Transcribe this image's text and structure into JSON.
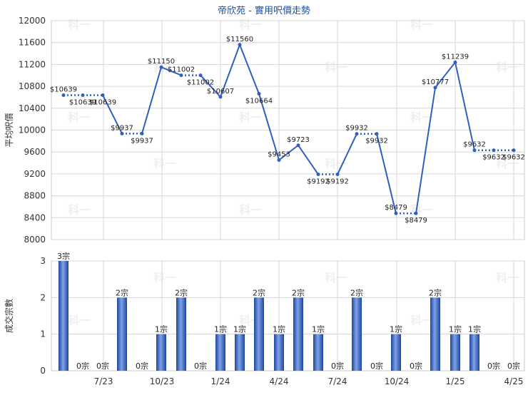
{
  "chart_data": [
    {
      "type": "line",
      "title": "帝欣苑 - 實用呎價走勢",
      "xlabel": "",
      "ylabel": "平均呎價",
      "ylim": [
        8000,
        12000
      ],
      "yticks": [
        8000,
        8400,
        8800,
        9200,
        9600,
        10000,
        10400,
        10800,
        11200,
        11600,
        12000
      ],
      "grid": true,
      "data_label_prefix": "$",
      "series_color": "#2f5fbf",
      "values": [
        10639,
        10639,
        10639,
        null,
        9937,
        9937,
        null,
        11150,
        11002,
        11002,
        10607,
        11560,
        10664,
        9453,
        9723,
        9192,
        9192,
        9932,
        9932,
        8479,
        8479,
        10777,
        11239,
        9632,
        9632,
        9632
      ],
      "flat_segments": [
        [
          0,
          2
        ],
        [
          4,
          5
        ],
        [
          8,
          9
        ],
        [
          15,
          16
        ],
        [
          17,
          18
        ],
        [
          19,
          20
        ],
        [
          23,
          25
        ]
      ],
      "x_positions": [
        0,
        1,
        2,
        null,
        3,
        4,
        null,
        5,
        6,
        7,
        8,
        9,
        10,
        11,
        12,
        13,
        14,
        15,
        16,
        17,
        18,
        19,
        20,
        21,
        22,
        23
      ]
    },
    {
      "type": "bar",
      "xlabel": "",
      "ylabel": "成交宗數",
      "ylim": [
        0,
        3
      ],
      "yticks": [
        0,
        1,
        2,
        3
      ],
      "bar_label_suffix": "宗",
      "categories_ticks": [
        "7/23",
        "10/23",
        "1/24",
        "4/24",
        "7/24",
        "10/24",
        "1/25",
        "4/25"
      ],
      "values": [
        3,
        0,
        0,
        2,
        0,
        1,
        2,
        0,
        1,
        1,
        2,
        1,
        2,
        1,
        0,
        2,
        0,
        1,
        0,
        2,
        1,
        1,
        0,
        0
      ],
      "bar_color": "#3a66c4"
    }
  ],
  "watermark": "科一"
}
